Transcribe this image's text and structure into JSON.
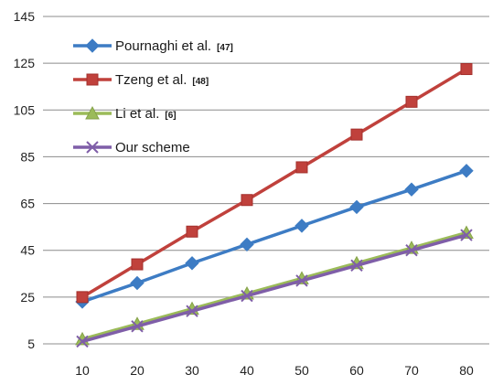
{
  "chart_data": {
    "type": "line",
    "title": "",
    "xlabel": "",
    "ylabel": "",
    "x": [
      10,
      20,
      30,
      40,
      50,
      60,
      70,
      80
    ],
    "ylim": [
      5,
      145
    ],
    "y_ticks": [
      5,
      25,
      45,
      65,
      85,
      105,
      125,
      145
    ],
    "grid": "horizontal",
    "legend_position": "top-left",
    "series": [
      {
        "name": "Pournaghi et al.",
        "ref": "[47]",
        "color": "#3d7cc4",
        "marker": "diamond",
        "values": [
          23,
          31,
          39.5,
          47.5,
          55.5,
          63.5,
          71,
          79
        ]
      },
      {
        "name": "Tzeng et al.",
        "ref": "[48]",
        "color": "#c0413c",
        "marker": "square",
        "values": [
          25,
          39,
          53,
          66.5,
          80.5,
          94.5,
          108.5,
          122.5
        ]
      },
      {
        "name": "Li et al.",
        "ref": "[6]",
        "color": "#9bbb59",
        "marker": "triangle",
        "values": [
          7,
          13.5,
          20,
          26.5,
          33,
          39.5,
          46,
          52.5
        ]
      },
      {
        "name": "Our scheme",
        "ref": "",
        "color": "#7f5ea8",
        "marker": "x",
        "values": [
          6,
          12.5,
          19,
          25.5,
          32,
          38.5,
          45,
          51.5
        ]
      }
    ]
  }
}
